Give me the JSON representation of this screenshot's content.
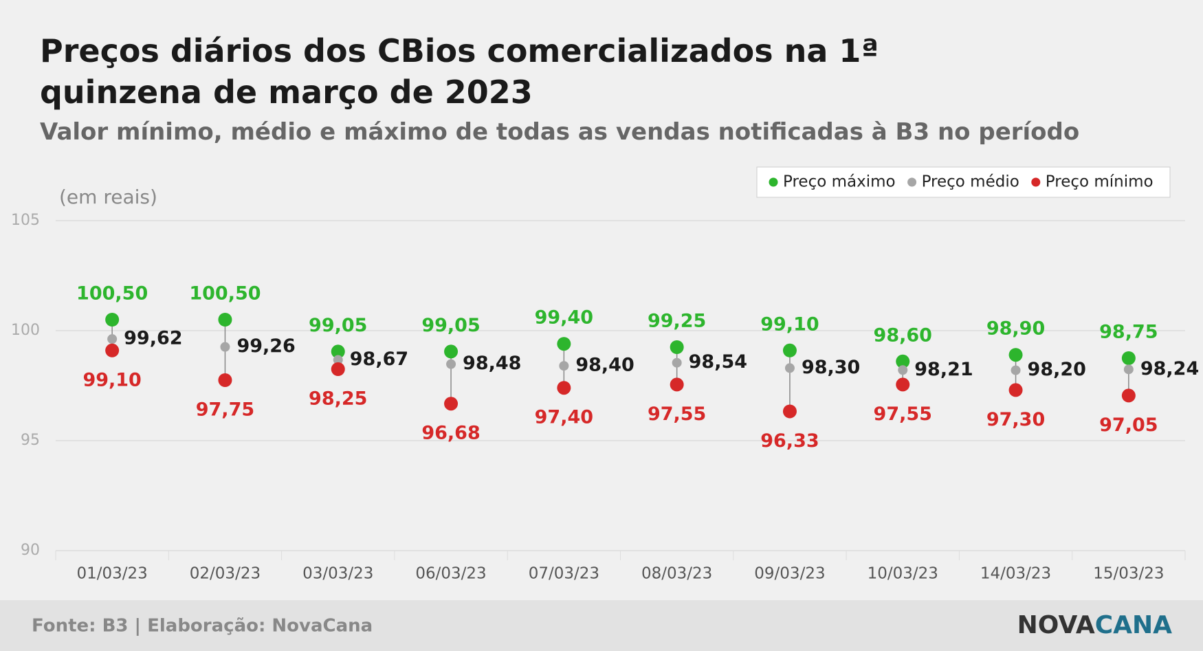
{
  "chart_data": {
    "type": "dot_range",
    "title": "Preços diários dos CBios comercializados na 1ª quinzena de março de 2023",
    "subtitle": "Valor mínimo, médio e máximo de todas as vendas notificadas à B3 no período",
    "y_label": "(em reais)",
    "categories": [
      "01/03/23",
      "02/03/23",
      "03/03/23",
      "06/03/23",
      "07/03/23",
      "08/03/23",
      "09/03/23",
      "10/03/23",
      "14/03/23",
      "15/03/23"
    ],
    "series": [
      {
        "name": "Preço máximo",
        "color": "#2db52d",
        "values": [
          100.5,
          100.5,
          99.05,
          99.05,
          99.4,
          99.25,
          99.1,
          98.6,
          98.9,
          98.75
        ],
        "value_labels": [
          "100,50",
          "100,50",
          "99,05",
          "99,05",
          "99,40",
          "99,25",
          "99,10",
          "98,60",
          "98,90",
          "98,75"
        ]
      },
      {
        "name": "Preço médio",
        "color": "#a6a6a6",
        "values": [
          99.62,
          99.26,
          98.67,
          98.48,
          98.4,
          98.54,
          98.3,
          98.21,
          98.2,
          98.24
        ],
        "value_labels": [
          "99,62",
          "99,26",
          "98,67",
          "98,48",
          "98,40",
          "98,54",
          "98,30",
          "98,21",
          "98,20",
          "98,24"
        ]
      },
      {
        "name": "Preço mínimo",
        "color": "#d62828",
        "values": [
          99.1,
          97.75,
          98.25,
          96.68,
          97.4,
          97.55,
          96.33,
          97.55,
          97.3,
          97.05
        ],
        "value_labels": [
          "99,10",
          "97,75",
          "98,25",
          "96,68",
          "97,40",
          "97,55",
          "96,33",
          "97,55",
          "97,30",
          "97,05"
        ]
      }
    ],
    "ylim": [
      90,
      105
    ],
    "yticks": [
      90,
      95,
      100,
      105
    ],
    "grid": true,
    "legend": "top-right",
    "source": "Fonte: B3 | Elaboração: NovaCana",
    "logo": [
      "NOVA",
      "CANA"
    ]
  }
}
